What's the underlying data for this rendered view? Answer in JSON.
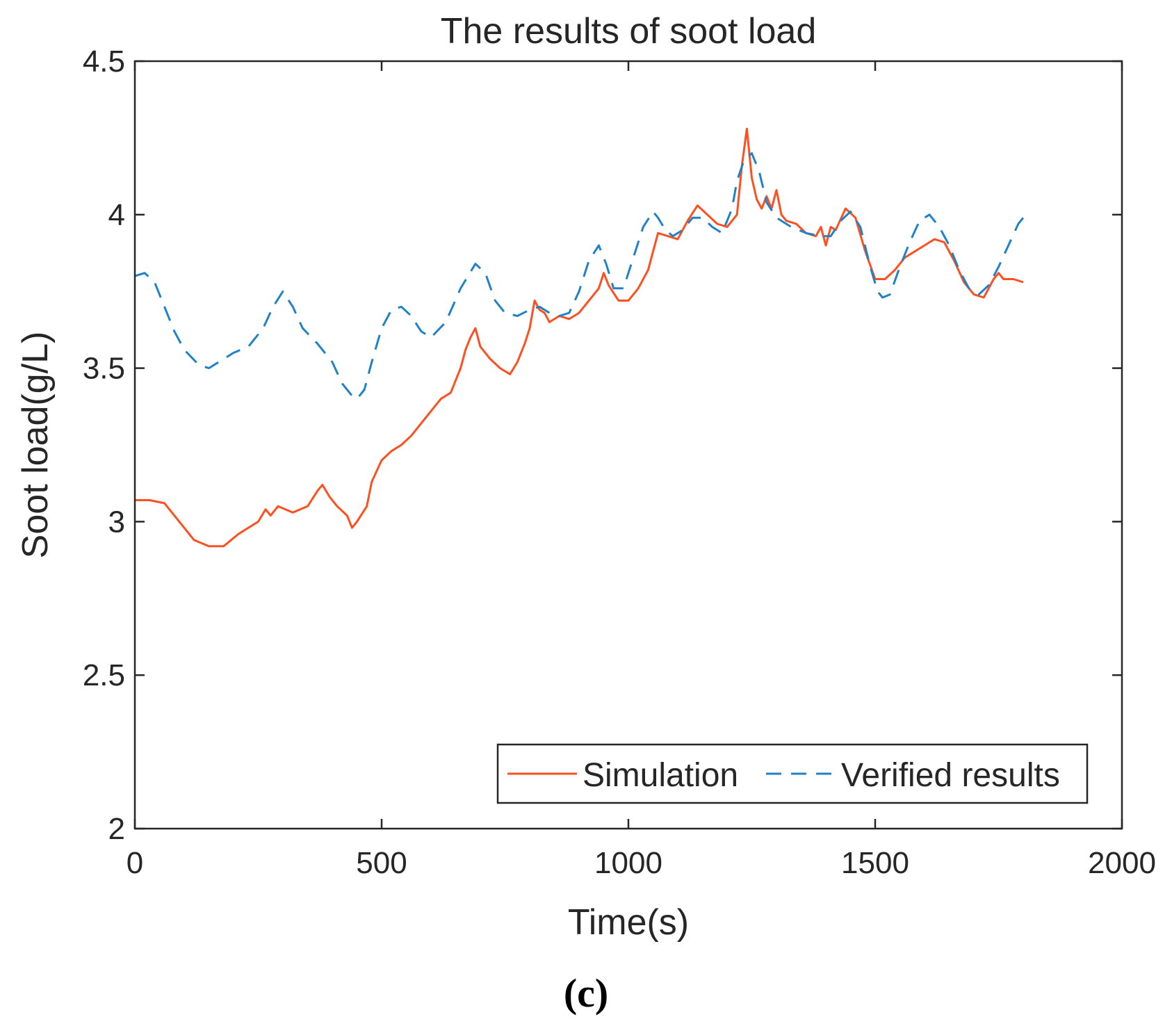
{
  "chart_data": {
    "type": "line",
    "title": "The results of soot load",
    "xlabel": "Time(s)",
    "ylabel": "Soot load(g/L)",
    "xlim": [
      0,
      2000
    ],
    "ylim": [
      2,
      4.5
    ],
    "xticks": [
      0,
      500,
      1000,
      1500,
      2000
    ],
    "xtick_labels": [
      "0",
      "500",
      "1000",
      "1500",
      "2000"
    ],
    "yticks": [
      2,
      2.5,
      3,
      3.5,
      4,
      4.5
    ],
    "ytick_labels": [
      "2",
      "2.5",
      "3",
      "3.5",
      "4",
      "4.5"
    ],
    "grid": false,
    "legend": {
      "location": "bottom-right",
      "orientation": "horizontal"
    },
    "series": [
      {
        "name": "Simulation",
        "color": "#ff4f1f",
        "style": "solid",
        "x": [
          0,
          30,
          60,
          90,
          120,
          150,
          180,
          210,
          250,
          265,
          275,
          290,
          320,
          350,
          370,
          380,
          395,
          410,
          430,
          440,
          450,
          470,
          480,
          500,
          520,
          540,
          560,
          580,
          600,
          620,
          640,
          660,
          670,
          680,
          690,
          700,
          720,
          740,
          760,
          775,
          790,
          800,
          810,
          820,
          830,
          840,
          850,
          860,
          880,
          900,
          920,
          940,
          950,
          960,
          980,
          1000,
          1020,
          1040,
          1060,
          1080,
          1100,
          1120,
          1140,
          1160,
          1180,
          1200,
          1220,
          1230,
          1240,
          1250,
          1260,
          1270,
          1280,
          1290,
          1300,
          1310,
          1320,
          1340,
          1360,
          1380,
          1390,
          1400,
          1410,
          1420,
          1440,
          1460,
          1480,
          1500,
          1520,
          1540,
          1560,
          1580,
          1600,
          1620,
          1640,
          1660,
          1680,
          1700,
          1720,
          1740,
          1750,
          1760,
          1780,
          1800
        ],
        "y": [
          3.07,
          3.07,
          3.06,
          3.0,
          2.94,
          2.92,
          2.92,
          2.96,
          3.0,
          3.04,
          3.02,
          3.05,
          3.03,
          3.05,
          3.1,
          3.12,
          3.08,
          3.05,
          3.02,
          2.98,
          3.0,
          3.05,
          3.13,
          3.2,
          3.23,
          3.25,
          3.28,
          3.32,
          3.36,
          3.4,
          3.42,
          3.5,
          3.56,
          3.6,
          3.63,
          3.57,
          3.53,
          3.5,
          3.48,
          3.52,
          3.58,
          3.63,
          3.72,
          3.69,
          3.68,
          3.65,
          3.66,
          3.67,
          3.66,
          3.68,
          3.72,
          3.76,
          3.81,
          3.77,
          3.72,
          3.72,
          3.76,
          3.82,
          3.94,
          3.93,
          3.92,
          3.98,
          4.03,
          4.0,
          3.97,
          3.96,
          4.0,
          4.16,
          4.28,
          4.12,
          4.05,
          4.02,
          4.06,
          4.02,
          4.08,
          4.0,
          3.98,
          3.97,
          3.94,
          3.93,
          3.96,
          3.9,
          3.96,
          3.95,
          4.02,
          3.99,
          3.88,
          3.79,
          3.79,
          3.82,
          3.86,
          3.88,
          3.9,
          3.92,
          3.91,
          3.85,
          3.78,
          3.74,
          3.73,
          3.79,
          3.81,
          3.79,
          3.79,
          3.78
        ]
      },
      {
        "name": "Verified results",
        "color": "#1f82c8",
        "style": "dashed",
        "x": [
          0,
          20,
          40,
          60,
          80,
          100,
          130,
          150,
          170,
          200,
          230,
          260,
          280,
          300,
          320,
          340,
          370,
          400,
          420,
          440,
          450,
          465,
          480,
          500,
          520,
          540,
          560,
          580,
          600,
          630,
          660,
          690,
          710,
          730,
          750,
          775,
          800,
          820,
          840,
          860,
          880,
          900,
          920,
          940,
          955,
          970,
          990,
          1010,
          1030,
          1050,
          1060,
          1075,
          1090,
          1110,
          1130,
          1150,
          1170,
          1190,
          1210,
          1220,
          1235,
          1250,
          1265,
          1280,
          1300,
          1330,
          1360,
          1390,
          1410,
          1430,
          1450,
          1470,
          1490,
          1505,
          1515,
          1530,
          1550,
          1570,
          1590,
          1610,
          1630,
          1650,
          1670,
          1690,
          1710,
          1730,
          1750,
          1770,
          1790,
          1805
        ],
        "y": [
          3.8,
          3.81,
          3.78,
          3.7,
          3.62,
          3.56,
          3.51,
          3.5,
          3.52,
          3.55,
          3.57,
          3.63,
          3.7,
          3.75,
          3.7,
          3.63,
          3.58,
          3.52,
          3.45,
          3.41,
          3.4,
          3.43,
          3.52,
          3.63,
          3.69,
          3.7,
          3.67,
          3.62,
          3.6,
          3.65,
          3.76,
          3.84,
          3.81,
          3.72,
          3.68,
          3.67,
          3.69,
          3.7,
          3.68,
          3.67,
          3.68,
          3.75,
          3.85,
          3.9,
          3.84,
          3.76,
          3.76,
          3.86,
          3.96,
          4.01,
          3.99,
          3.95,
          3.93,
          3.95,
          3.99,
          3.99,
          3.96,
          3.94,
          4.02,
          4.11,
          4.18,
          4.2,
          4.14,
          4.04,
          3.99,
          3.96,
          3.94,
          3.93,
          3.93,
          3.98,
          4.01,
          3.96,
          3.83,
          3.75,
          3.73,
          3.74,
          3.83,
          3.91,
          3.98,
          4.0,
          3.96,
          3.9,
          3.82,
          3.76,
          3.74,
          3.77,
          3.83,
          3.9,
          3.97,
          4.0
        ]
      }
    ]
  },
  "panel_label": "(c)"
}
